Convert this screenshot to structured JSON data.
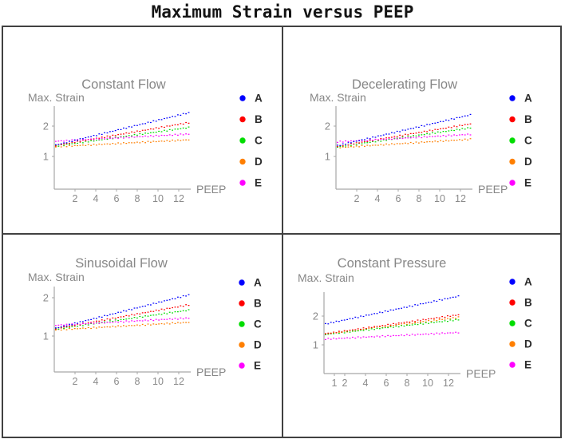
{
  "title": "Maximum Strain versus PEEP",
  "colors": {
    "A": "#0000ff",
    "B": "#ff0000",
    "C": "#00dd00",
    "D": "#ff7f00",
    "E": "#ff00ff",
    "axis": "#a6a6a6",
    "tick_text": "#8a8a8a",
    "subplot_title": "#878787",
    "legend_text": "#2b2b2b",
    "border": "#414141",
    "main_title": "#141414"
  },
  "legend": {
    "position": "right",
    "items": [
      {
        "label": "A",
        "color": "#0000ff"
      },
      {
        "label": "B",
        "color": "#ff0000"
      },
      {
        "label": "C",
        "color": "#00dd00"
      },
      {
        "label": "D",
        "color": "#ff7f00"
      },
      {
        "label": "E",
        "color": "#ff00ff"
      }
    ]
  },
  "chart_data": [
    {
      "type": "line",
      "line_style": "dotted",
      "title": "Constant Flow",
      "xlabel": "PEEP",
      "ylabel": "Max. Strain",
      "xlim": [
        0,
        13
      ],
      "x_ticks": [
        2,
        4,
        6,
        8,
        10,
        12
      ],
      "y_ticks": [
        1,
        2
      ],
      "grid": false,
      "legend_position": "right",
      "series": [
        {
          "name": "A",
          "color": "#0000ff",
          "x": [
            0,
            13
          ],
          "y": [
            1.37,
            2.45
          ]
        },
        {
          "name": "B",
          "color": "#ff0000",
          "x": [
            0,
            13
          ],
          "y": [
            1.36,
            2.12
          ]
        },
        {
          "name": "C",
          "color": "#00dd00",
          "x": [
            0,
            13
          ],
          "y": [
            1.34,
            1.96
          ]
        },
        {
          "name": "D",
          "color": "#ff7f00",
          "x": [
            0,
            13
          ],
          "y": [
            1.32,
            1.55
          ]
        },
        {
          "name": "E",
          "color": "#ff00ff",
          "x": [
            0,
            13
          ],
          "y": [
            1.5,
            1.74
          ]
        }
      ]
    },
    {
      "type": "line",
      "line_style": "dotted",
      "title": "Decelerating Flow",
      "xlabel": "PEEP",
      "ylabel": "Max. Strain",
      "xlim": [
        0,
        13
      ],
      "x_ticks": [
        2,
        4,
        6,
        8,
        10,
        12
      ],
      "y_ticks": [
        1,
        2
      ],
      "grid": false,
      "legend_position": "right",
      "series": [
        {
          "name": "A",
          "color": "#0000ff",
          "x": [
            0,
            13
          ],
          "y": [
            1.35,
            2.38
          ]
        },
        {
          "name": "B",
          "color": "#ff0000",
          "x": [
            0,
            13
          ],
          "y": [
            1.33,
            2.08
          ]
        },
        {
          "name": "C",
          "color": "#00dd00",
          "x": [
            0,
            13
          ],
          "y": [
            1.31,
            1.95
          ]
        },
        {
          "name": "D",
          "color": "#ff7f00",
          "x": [
            0,
            13
          ],
          "y": [
            1.29,
            1.57
          ]
        },
        {
          "name": "E",
          "color": "#ff00ff",
          "x": [
            0,
            13
          ],
          "y": [
            1.48,
            1.73
          ]
        }
      ]
    },
    {
      "type": "line",
      "line_style": "dotted",
      "title": "Sinusoidal Flow",
      "xlabel": "PEEP",
      "ylabel": "Max. Strain",
      "xlim": [
        0,
        13
      ],
      "x_ticks": [
        2,
        4,
        6,
        8,
        10,
        12
      ],
      "y_ticks": [
        1,
        2
      ],
      "grid": false,
      "legend_position": "right",
      "series": [
        {
          "name": "A",
          "color": "#0000ff",
          "x": [
            0,
            13
          ],
          "y": [
            1.2,
            2.08
          ]
        },
        {
          "name": "B",
          "color": "#ff0000",
          "x": [
            0,
            13
          ],
          "y": [
            1.19,
            1.82
          ]
        },
        {
          "name": "C",
          "color": "#00dd00",
          "x": [
            0,
            13
          ],
          "y": [
            1.18,
            1.68
          ]
        },
        {
          "name": "D",
          "color": "#ff7f00",
          "x": [
            0,
            13
          ],
          "y": [
            1.16,
            1.36
          ]
        },
        {
          "name": "E",
          "color": "#ff00ff",
          "x": [
            0,
            13
          ],
          "y": [
            1.28,
            1.47
          ]
        }
      ]
    },
    {
      "type": "line",
      "line_style": "dotted",
      "title": "Constant Pressure",
      "xlabel": "PEEP",
      "ylabel": "Max. Strain",
      "xlim": [
        0,
        13
      ],
      "x_ticks": [
        1,
        2,
        4,
        6,
        8,
        10,
        12
      ],
      "y_ticks": [
        1,
        2
      ],
      "grid": false,
      "legend_position": "right",
      "series": [
        {
          "name": "A",
          "color": "#0000ff",
          "x": [
            0,
            13
          ],
          "y": [
            1.72,
            2.7
          ]
        },
        {
          "name": "B",
          "color": "#ff0000",
          "x": [
            0,
            13
          ],
          "y": [
            1.38,
            2.05
          ]
        },
        {
          "name": "C",
          "color": "#00dd00",
          "x": [
            0,
            13
          ],
          "y": [
            1.36,
            1.88
          ]
        },
        {
          "name": "D",
          "color": "#ff7f00",
          "x": [
            0,
            13
          ],
          "y": [
            1.37,
            1.96
          ]
        },
        {
          "name": "E",
          "color": "#ff00ff",
          "x": [
            0,
            13
          ],
          "y": [
            1.2,
            1.43
          ]
        }
      ]
    }
  ]
}
